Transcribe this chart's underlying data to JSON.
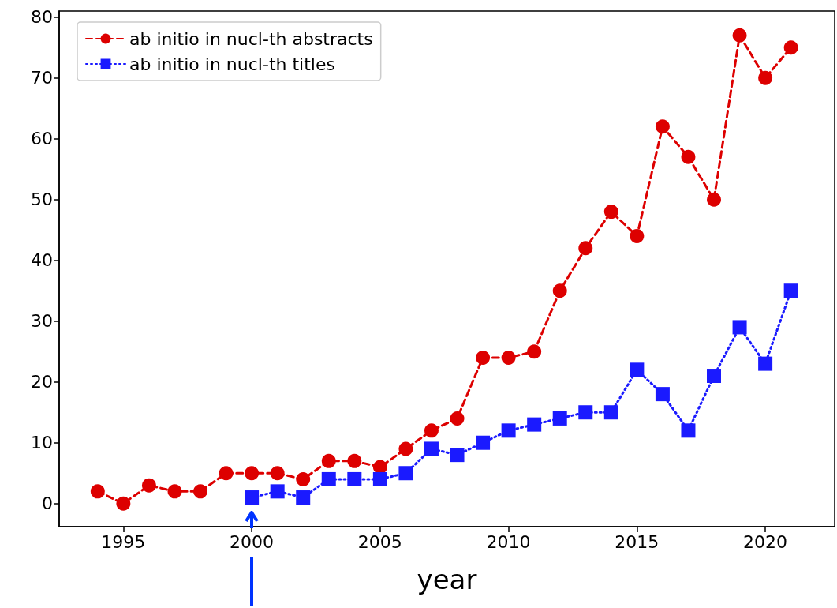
{
  "chart_data": {
    "type": "line",
    "xlabel": "year",
    "xlim": [
      1992.5,
      2022.7
    ],
    "xticks": [
      1995,
      2000,
      2005,
      2010,
      2015,
      2020
    ],
    "ylim": [
      -3.8,
      81
    ],
    "yticks": [
      0,
      10,
      20,
      30,
      40,
      50,
      60,
      70,
      80
    ],
    "grid": false,
    "legend": "top left",
    "series": [
      {
        "name": "ab initio in nucl-th abstracts",
        "color": "#dd0000",
        "marker": "circle",
        "line_style": "dashed",
        "x": [
          1994,
          1995,
          1996,
          1997,
          1998,
          1999,
          2000,
          2001,
          2002,
          2003,
          2004,
          2005,
          2006,
          2007,
          2008,
          2009,
          2010,
          2011,
          2012,
          2013,
          2014,
          2015,
          2016,
          2017,
          2018,
          2019,
          2020,
          2021
        ],
        "values": [
          2,
          0,
          3,
          2,
          2,
          5,
          5,
          5,
          4,
          7,
          7,
          6,
          9,
          12,
          14,
          24,
          24,
          25,
          35,
          42,
          48,
          44,
          62,
          57,
          50,
          77,
          70,
          75
        ]
      },
      {
        "name": "ab initio in nucl-th titles",
        "color": "#1a1aff",
        "marker": "square",
        "line_style": "dotted",
        "x": [
          2000,
          2001,
          2002,
          2003,
          2004,
          2005,
          2006,
          2007,
          2008,
          2009,
          2010,
          2011,
          2012,
          2013,
          2014,
          2015,
          2016,
          2017,
          2018,
          2019,
          2020,
          2021
        ],
        "values": [
          1,
          2,
          1,
          4,
          4,
          4,
          5,
          9,
          8,
          10,
          12,
          13,
          14,
          15,
          15,
          22,
          18,
          12,
          21,
          29,
          23,
          35
        ]
      }
    ]
  }
}
